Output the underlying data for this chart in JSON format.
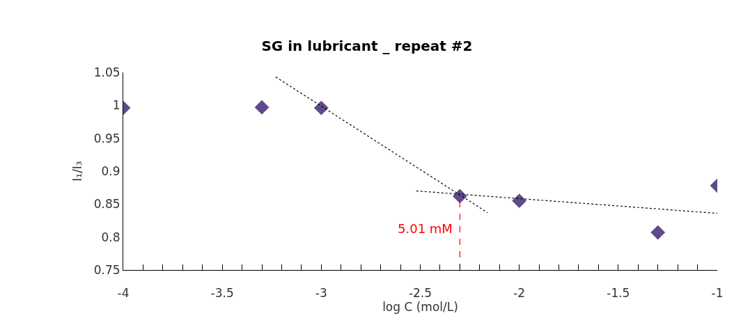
{
  "chart_data": {
    "type": "scatter",
    "title": "SG in lubricant _ repeat #2",
    "xlabel": "log C (mol/L)",
    "ylabel": "I₁/I₃",
    "xlim": [
      -4,
      -1
    ],
    "ylim": [
      0.75,
      1.05
    ],
    "xticks": [
      -4,
      {
        "value": -3.9,
        "label": null
      },
      {
        "value": -3.8,
        "label": null
      },
      {
        "value": -3.7,
        "label": null
      },
      {
        "value": -3.6,
        "label": null
      },
      -3.5,
      {
        "value": -3.4,
        "label": null
      },
      {
        "value": -3.3,
        "label": null
      },
      {
        "value": -3.2,
        "label": null
      },
      {
        "value": -3.1,
        "label": null
      },
      -3,
      {
        "value": -2.9,
        "label": null
      },
      {
        "value": -2.8,
        "label": null
      },
      {
        "value": -2.7,
        "label": null
      },
      {
        "value": -2.6,
        "label": null
      },
      -2.5,
      {
        "value": -2.4,
        "label": null
      },
      {
        "value": -2.3,
        "label": null
      },
      {
        "value": -2.2,
        "label": null
      },
      {
        "value": -2.1,
        "label": null
      },
      -2,
      {
        "value": -1.9,
        "label": null
      },
      {
        "value": -1.8,
        "label": null
      },
      {
        "value": -1.7,
        "label": null
      },
      {
        "value": -1.6,
        "label": null
      },
      -1.5,
      {
        "value": -1.4,
        "label": null
      },
      {
        "value": -1.3,
        "label": null
      },
      {
        "value": -1.2,
        "label": null
      },
      {
        "value": -1.1,
        "label": null
      },
      -1
    ],
    "yticks": [
      0.75,
      0.8,
      0.85,
      0.9,
      0.95,
      {
        "value": 1.0,
        "label": "1"
      },
      1.05
    ],
    "marker": "diamond",
    "series": [
      {
        "color": "#5f4b8b",
        "x": [
          -4,
          -3.3,
          -3,
          -2.3,
          -2,
          -1.3,
          -1
        ],
        "values": [
          0.996,
          0.997,
          0.996,
          0.862,
          0.855,
          0.807,
          0.878
        ]
      },
      {
        "type": "line",
        "color": "#000000",
        "line_style": "dotted",
        "marker": "none",
        "x": [
          -3.23,
          -2.16
        ],
        "values": [
          1.043,
          0.837
        ]
      },
      {
        "type": "line",
        "color": "#000000",
        "line_style": "dotted",
        "marker": "none",
        "x": [
          -2.52,
          -1
        ],
        "values": [
          0.87,
          0.836
        ]
      },
      {
        "type": "line",
        "color": "#ff0000",
        "line_style": "dashed",
        "marker": "none",
        "x": [
          -2.3,
          -2.3
        ],
        "values": [
          0.75,
          0.862
        ]
      }
    ],
    "annotations": [
      "5.01 mM"
    ]
  }
}
